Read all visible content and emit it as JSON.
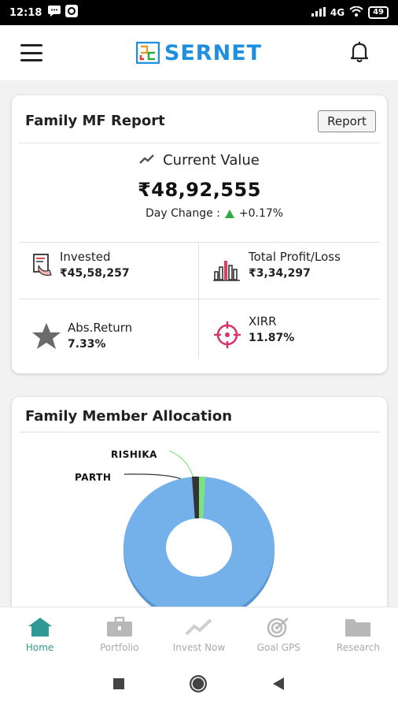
{
  "status_bar": {
    "time": "12:18",
    "network": "4G",
    "battery": "49"
  },
  "app_bar": {
    "brand": "SERNET"
  },
  "report_card": {
    "title": "Family MF Report",
    "report_button": "Report",
    "current_value_label": "Current Value",
    "current_value": "₹48,92,555",
    "day_change_label": "Day Change :",
    "day_change_value": "+0.17%",
    "day_change_color": "#2eaa43",
    "stats": [
      {
        "label": "Invested",
        "value": "₹45,58,257",
        "icon": "invested-icon"
      },
      {
        "label": "Total Profit/Loss",
        "value": "₹3,34,297",
        "icon": "bar-chart-icon"
      },
      {
        "label": "Abs.Return",
        "value": "7.33%",
        "icon": "star-icon"
      },
      {
        "label": "XIRR",
        "value": "11.87%",
        "icon": "target-icon"
      }
    ]
  },
  "allocation_card": {
    "title": "Family Member Allocation",
    "chart_data": {
      "type": "pie",
      "labels": [
        "RISHIKA",
        "PARTH"
      ],
      "colors": [
        "#7ee37e",
        "#333333",
        "#74b1ea"
      ]
    }
  },
  "bottom_nav": {
    "items": [
      {
        "label": "Home",
        "icon": "home-icon",
        "active": true
      },
      {
        "label": "Portfolio",
        "icon": "briefcase-icon",
        "active": false
      },
      {
        "label": "Invest Now",
        "icon": "trend-icon",
        "active": false
      },
      {
        "label": "Goal GPS",
        "icon": "goal-target-icon",
        "active": false
      },
      {
        "label": "Research",
        "icon": "folder-icon",
        "active": false
      }
    ]
  },
  "colors": {
    "brand": "#1f8fe0",
    "active_nav": "#2f9a93",
    "donut_main": "#74b1ea"
  }
}
